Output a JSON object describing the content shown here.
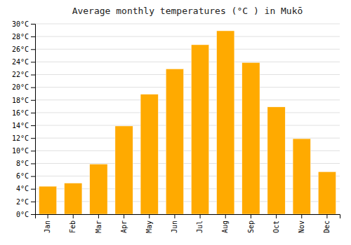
{
  "chart_data": {
    "type": "bar",
    "title": "Average monthly temperatures (°C ) in Mukō",
    "categories": [
      "Jan",
      "Feb",
      "Mar",
      "Apr",
      "May",
      "Jun",
      "Jul",
      "Aug",
      "Sep",
      "Oct",
      "Nov",
      "Dec"
    ],
    "values": [
      4.4,
      4.9,
      7.9,
      13.9,
      18.9,
      22.9,
      26.7,
      28.9,
      23.9,
      16.9,
      11.9,
      6.7
    ],
    "color": "#FFAA00",
    "ylim": [
      0,
      30
    ],
    "yticks": [
      {
        "value": 0,
        "label": "0°C"
      },
      {
        "value": 2,
        "label": "2°C"
      },
      {
        "value": 4,
        "label": "4°C"
      },
      {
        "value": 6,
        "label": "6°C"
      },
      {
        "value": 8,
        "label": "8°C"
      },
      {
        "value": 10,
        "label": "10°C"
      },
      {
        "value": 12,
        "label": "12°C"
      },
      {
        "value": 14,
        "label": "14°C"
      },
      {
        "value": 16,
        "label": "16°C"
      },
      {
        "value": 18,
        "label": "18°C"
      },
      {
        "value": 20,
        "label": "20°C"
      },
      {
        "value": 22,
        "label": "22°C"
      },
      {
        "value": 24,
        "label": "24°C"
      },
      {
        "value": 26,
        "label": "26°C"
      },
      {
        "value": 28,
        "label": "28°C"
      },
      {
        "value": 30,
        "label": "30°C"
      }
    ],
    "grid": true
  }
}
